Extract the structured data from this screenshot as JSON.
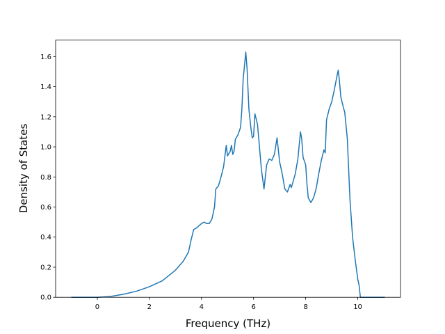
{
  "chart_data": {
    "type": "line",
    "xlabel": "Frequency (THz)",
    "ylabel": "Density of States",
    "color": "#1f77b4",
    "x": [
      -1,
      0,
      0.5,
      1,
      1.5,
      2,
      2.5,
      3,
      3.3,
      3.5,
      3.6,
      3.7,
      3.8,
      4.0,
      4.1,
      4.2,
      4.3,
      4.4,
      4.5,
      4.55,
      4.65,
      4.75,
      4.85,
      4.95,
      5.0,
      5.1,
      5.15,
      5.2,
      5.25,
      5.3,
      5.4,
      5.5,
      5.55,
      5.6,
      5.7,
      5.75,
      5.82,
      5.9,
      5.95,
      6.0,
      6.05,
      6.15,
      6.2,
      6.3,
      6.4,
      6.5,
      6.6,
      6.7,
      6.8,
      6.9,
      7.0,
      7.1,
      7.2,
      7.3,
      7.4,
      7.45,
      7.6,
      7.7,
      7.8,
      7.85,
      7.9,
      8.0,
      8.05,
      8.1,
      8.2,
      8.3,
      8.4,
      8.5,
      8.6,
      8.7,
      8.75,
      8.8,
      8.9,
      9.0,
      9.1,
      9.2,
      9.25,
      9.3,
      9.35,
      9.45,
      9.5,
      9.6,
      9.7,
      9.8,
      9.9,
      10.0,
      10.05,
      10.1,
      11.04
    ],
    "values": [
      0,
      0,
      0.005,
      0.02,
      0.04,
      0.07,
      0.11,
      0.18,
      0.24,
      0.3,
      0.38,
      0.45,
      0.46,
      0.49,
      0.5,
      0.49,
      0.49,
      0.52,
      0.6,
      0.72,
      0.74,
      0.8,
      0.87,
      1.01,
      0.94,
      0.97,
      1.01,
      0.95,
      0.97,
      1.05,
      1.08,
      1.13,
      1.25,
      1.45,
      1.63,
      1.52,
      1.25,
      1.12,
      1.06,
      1.07,
      1.22,
      1.15,
      1.05,
      0.85,
      0.72,
      0.88,
      0.92,
      0.91,
      0.95,
      1.06,
      0.9,
      0.82,
      0.72,
      0.7,
      0.75,
      0.73,
      0.82,
      0.92,
      1.1,
      1.05,
      0.93,
      0.88,
      0.75,
      0.66,
      0.63,
      0.66,
      0.72,
      0.82,
      0.91,
      0.98,
      0.96,
      1.18,
      1.25,
      1.3,
      1.38,
      1.47,
      1.51,
      1.43,
      1.33,
      1.26,
      1.23,
      1.05,
      0.65,
      0.4,
      0.25,
      0.12,
      0.08,
      0,
      0
    ],
    "xlim": [
      -1.6,
      11.64
    ],
    "ylim": [
      0,
      1.71
    ],
    "xticks": [
      0,
      2,
      4,
      6,
      8,
      10
    ],
    "yticks": [
      {
        "value": 0,
        "label": "0.0"
      },
      {
        "value": 0.2,
        "label": "0.2"
      },
      {
        "value": 0.4,
        "label": "0.4"
      },
      {
        "value": 0.6,
        "label": "0.6"
      },
      {
        "value": 0.8,
        "label": "0.8"
      },
      {
        "value": 1.0,
        "label": "1.0"
      },
      {
        "value": 1.2,
        "label": "1.2"
      },
      {
        "value": 1.4,
        "label": "1.4"
      },
      {
        "value": 1.6,
        "label": "1.6"
      }
    ]
  }
}
